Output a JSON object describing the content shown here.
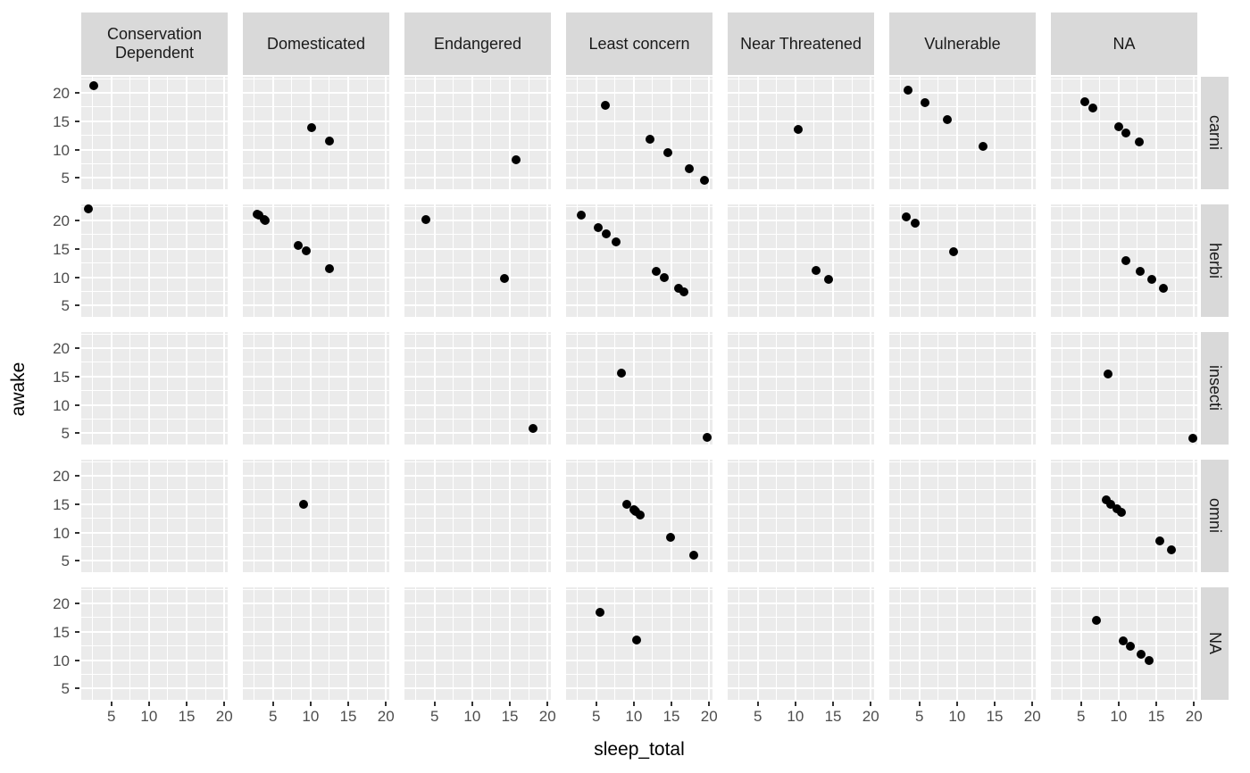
{
  "chart_data": {
    "type": "scatter",
    "xlabel": "sleep_total",
    "ylabel": "awake",
    "col_facets": [
      "Conservation Dependent",
      "Domesticated",
      "Endangered",
      "Least concern",
      "Near Threatened",
      "Vulnerable",
      "NA"
    ],
    "row_facets": [
      "carni",
      "herbi",
      "insecti",
      "omni",
      "NA"
    ],
    "x_ticks": [
      5,
      10,
      15,
      20
    ],
    "y_ticks": [
      20,
      15,
      10,
      5
    ],
    "x_minor": [
      2.5,
      7.5,
      12.5,
      17.5
    ],
    "y_minor": [
      7.5,
      12.5,
      17.5,
      22.5
    ],
    "xlim": [
      1.0,
      20.45
    ],
    "ylim": [
      3.0,
      22.85
    ],
    "grid": true,
    "legend": "none",
    "point_color": "#000000",
    "panel_bg": "#EBEBEB",
    "strip_bg": "#D9D9D9",
    "panels": [
      {
        "col": "Conservation Dependent",
        "row": "carni",
        "points": [
          [
            2.7,
            21.3
          ]
        ]
      },
      {
        "col": "Conservation Dependent",
        "row": "herbi",
        "points": [
          [
            1.9,
            22.1
          ]
        ]
      },
      {
        "col": "Domesticated",
        "row": "carni",
        "points": [
          [
            10.1,
            13.9
          ],
          [
            12.5,
            11.5
          ]
        ]
      },
      {
        "col": "Domesticated",
        "row": "herbi",
        "points": [
          [
            2.9,
            21.1
          ],
          [
            3.1,
            20.9
          ],
          [
            3.8,
            20.2
          ],
          [
            4.0,
            20.0
          ],
          [
            8.4,
            15.6
          ],
          [
            9.4,
            14.6
          ],
          [
            12.5,
            11.5
          ]
        ]
      },
      {
        "col": "Domesticated",
        "row": "omni",
        "points": [
          [
            9.1,
            14.9
          ]
        ]
      },
      {
        "col": "Endangered",
        "row": "carni",
        "points": [
          [
            15.8,
            8.2
          ]
        ]
      },
      {
        "col": "Endangered",
        "row": "herbi",
        "points": [
          [
            3.9,
            20.1
          ],
          [
            14.3,
            9.7
          ]
        ]
      },
      {
        "col": "Endangered",
        "row": "insecti",
        "points": [
          [
            18.1,
            5.9
          ]
        ]
      },
      {
        "col": "Least concern",
        "row": "carni",
        "points": [
          [
            6.2,
            17.8
          ],
          [
            12.1,
            11.9
          ],
          [
            14.5,
            9.5
          ],
          [
            17.4,
            6.6
          ],
          [
            19.4,
            4.6
          ]
        ]
      },
      {
        "col": "Least concern",
        "row": "herbi",
        "points": [
          [
            3.0,
            21.0
          ],
          [
            5.3,
            18.7
          ],
          [
            6.3,
            17.7
          ],
          [
            7.7,
            16.3
          ],
          [
            13.0,
            11.0
          ],
          [
            14.0,
            10.0
          ],
          [
            16.0,
            8.0
          ],
          [
            16.6,
            7.4
          ]
        ]
      },
      {
        "col": "Least concern",
        "row": "insecti",
        "points": [
          [
            8.4,
            15.6
          ],
          [
            19.7,
            4.3
          ]
        ]
      },
      {
        "col": "Least concern",
        "row": "omni",
        "points": [
          [
            9.1,
            14.9
          ],
          [
            10.0,
            14.0
          ],
          [
            10.1,
            13.9
          ],
          [
            10.3,
            13.7
          ],
          [
            10.9,
            13.1
          ],
          [
            14.9,
            9.1
          ],
          [
            18.0,
            6.0
          ]
        ]
      },
      {
        "col": "Least concern",
        "row": "NA",
        "points": [
          [
            5.5,
            18.5
          ],
          [
            10.4,
            13.6
          ]
        ]
      },
      {
        "col": "Near Threatened",
        "row": "carni",
        "points": [
          [
            10.4,
            13.6
          ]
        ]
      },
      {
        "col": "Near Threatened",
        "row": "herbi",
        "points": [
          [
            12.8,
            11.2
          ],
          [
            14.4,
            9.6
          ]
        ]
      },
      {
        "col": "Vulnerable",
        "row": "carni",
        "points": [
          [
            3.5,
            20.5
          ],
          [
            5.7,
            18.3
          ],
          [
            8.7,
            15.3
          ],
          [
            13.5,
            10.5
          ]
        ]
      },
      {
        "col": "Vulnerable",
        "row": "herbi",
        "points": [
          [
            3.3,
            20.7
          ],
          [
            4.4,
            19.6
          ],
          [
            9.5,
            14.5
          ]
        ]
      },
      {
        "col": "NA",
        "row": "carni",
        "points": [
          [
            5.5,
            18.5
          ],
          [
            6.6,
            17.4
          ],
          [
            10.0,
            14.0
          ],
          [
            11.0,
            13.0
          ],
          [
            12.7,
            11.3
          ]
        ]
      },
      {
        "col": "NA",
        "row": "herbi",
        "points": [
          [
            11.0,
            13.0
          ],
          [
            12.9,
            11.1
          ],
          [
            14.4,
            9.6
          ],
          [
            16.0,
            8.0
          ]
        ]
      },
      {
        "col": "NA",
        "row": "insecti",
        "points": [
          [
            8.6,
            15.4
          ],
          [
            19.9,
            4.1
          ]
        ]
      },
      {
        "col": "NA",
        "row": "omni",
        "points": [
          [
            8.3,
            15.7
          ],
          [
            9.0,
            15.0
          ],
          [
            9.8,
            14.2
          ],
          [
            10.4,
            13.6
          ],
          [
            15.5,
            8.5
          ],
          [
            17.0,
            7.0
          ]
        ]
      },
      {
        "col": "NA",
        "row": "NA",
        "points": [
          [
            7.0,
            17.0
          ],
          [
            10.6,
            13.4
          ],
          [
            11.5,
            12.5
          ],
          [
            13.0,
            11.0
          ],
          [
            14.0,
            10.0
          ]
        ]
      }
    ]
  }
}
